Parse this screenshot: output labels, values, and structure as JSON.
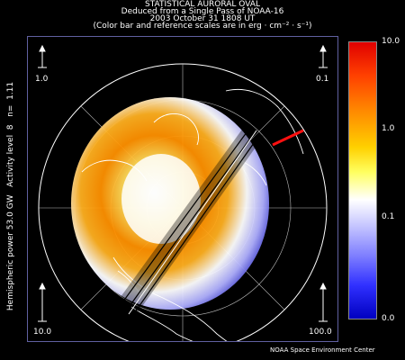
{
  "title": {
    "line1": "STATISTICAL AURORAL OVAL",
    "line2": "Deduced from a Single Pass of NOAA-16",
    "line3": "2003 October 31 1808 UT",
    "line4": "(Color bar and reference scales are in erg · cm⁻² · s⁻¹)"
  },
  "side_text": "Hemispheric power 53.0 GW   Activity level  8   n=  1.11",
  "reference_scales": {
    "top_left": "1.0",
    "top_right": "0.1",
    "bottom_left": "10.0",
    "bottom_right": "100.0"
  },
  "colorbar": {
    "max_label": "10.0",
    "label_1": "1.0",
    "label_01": "0.1",
    "min_label": "0.0",
    "top_color": "#e00000",
    "bottom_color": "#0000c0"
  },
  "credit": "NOAA Space Environment Center"
}
